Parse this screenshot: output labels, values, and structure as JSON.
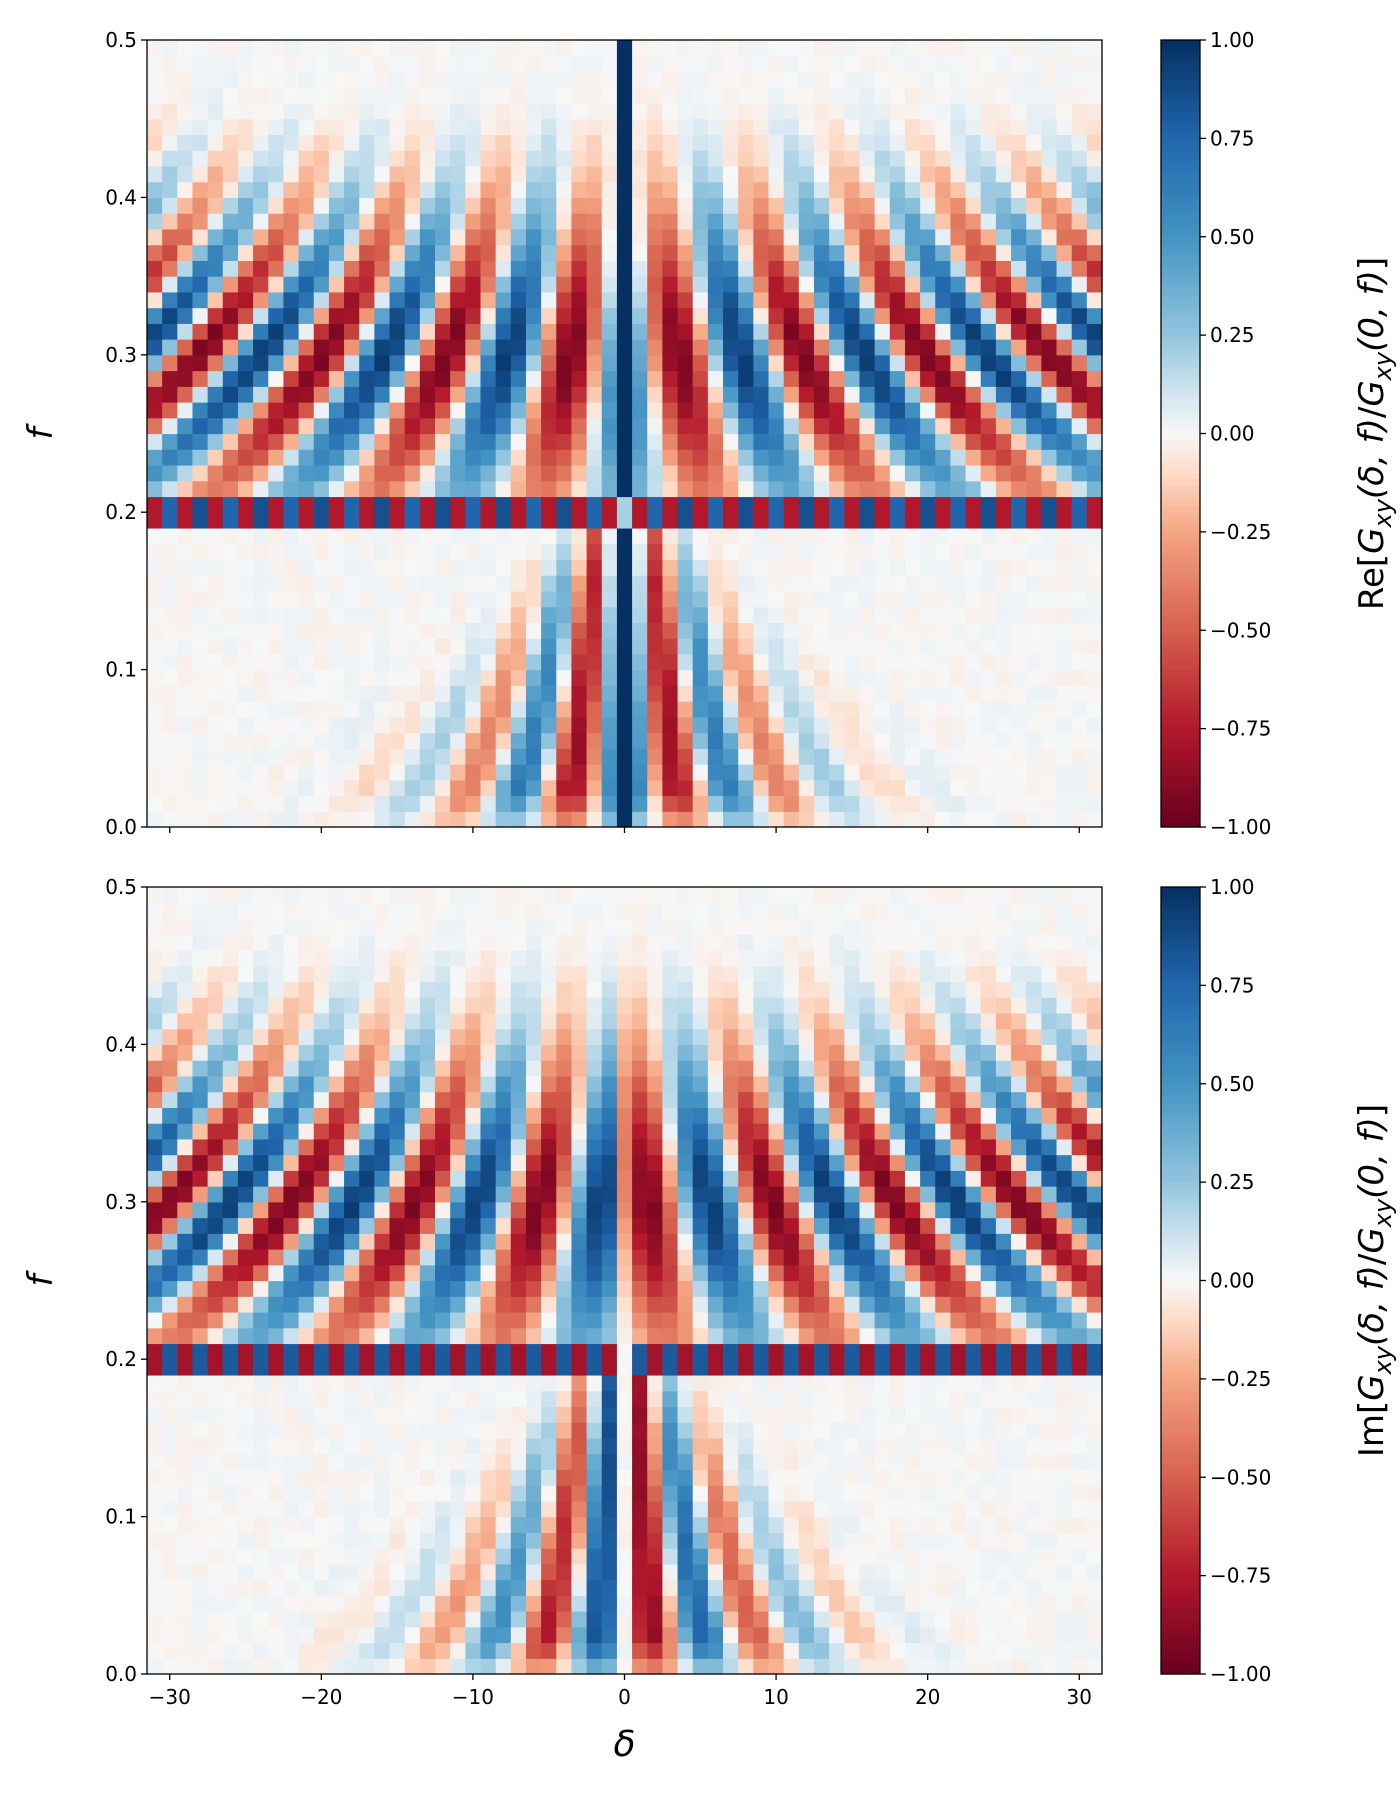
{
  "chart_data": [
    {
      "type": "heatmap",
      "panel": "top",
      "quantity": "real",
      "colorbar_label": "Re[G_xy(δ, f)/G_xy(0, f)]",
      "colorbar_label_parts": {
        "prefix": "Re",
        "num_sub": "xy",
        "num_args": "(δ, f)",
        "den_sub": "xy",
        "den_args": "(0, f)"
      },
      "colorbar_ticks": [
        "1.00",
        "0.75",
        "0.50",
        "0.25",
        "0.00",
        "−0.25",
        "−0.50",
        "−0.75",
        "−1.00"
      ],
      "colorbar_range": [
        -1.0,
        1.0
      ],
      "colormap": "RdBu",
      "xlabel": "",
      "ylabel": "f",
      "xlim": [
        -31.5,
        31.5
      ],
      "ylim": [
        0.0,
        0.5
      ],
      "x_ticks": [
        "−30",
        "−20",
        "−10",
        "0",
        "10",
        "20",
        "30"
      ],
      "x_tick_labels_visible": false,
      "y_ticks": [
        "0.0",
        "0.1",
        "0.2",
        "0.3",
        "0.4",
        "0.5"
      ],
      "delta_range": [
        -31,
        31
      ],
      "f_bins": 50,
      "model": {
        "center_column_value": 1.0,
        "peak_frequency": 0.2,
        "description_of_features": "bright center line at δ=0; alternating stripes for f>0.2 curving outward with f; checkerboard row at f≈0.2; narrow fan of stripes below f=0.2 near δ=0"
      }
    },
    {
      "type": "heatmap",
      "panel": "bottom",
      "quantity": "imaginary",
      "colorbar_label": "Im[G_xy(δ, f)/G_xy(0, f)]",
      "colorbar_label_parts": {
        "prefix": "Im",
        "num_sub": "xy",
        "num_args": "(δ, f)",
        "den_sub": "xy",
        "den_args": "(0, f)"
      },
      "colorbar_ticks": [
        "1.00",
        "0.75",
        "0.50",
        "0.25",
        "0.00",
        "−0.25",
        "−0.50",
        "−0.75",
        "−1.00"
      ],
      "colorbar_range": [
        -1.0,
        1.0
      ],
      "colormap": "RdBu",
      "xlabel": "δ",
      "ylabel": "f",
      "xlim": [
        -31.5,
        31.5
      ],
      "ylim": [
        0.0,
        0.5
      ],
      "x_ticks": [
        "−30",
        "−20",
        "−10",
        "0",
        "10",
        "20",
        "30"
      ],
      "x_tick_labels_visible": true,
      "y_ticks": [
        "0.0",
        "0.1",
        "0.2",
        "0.3",
        "0.4",
        "0.5"
      ],
      "delta_range": [
        -31,
        31
      ],
      "f_bins": 50,
      "model": {
        "center_column_value": 0.0,
        "peak_frequency": 0.2,
        "description_of_features": "antisymmetric about δ=0 (blue on left, red on right near center); alternating stripes for f>0.2; checkerboard row at f≈0.2; narrow fan below f=0.2"
      }
    }
  ]
}
